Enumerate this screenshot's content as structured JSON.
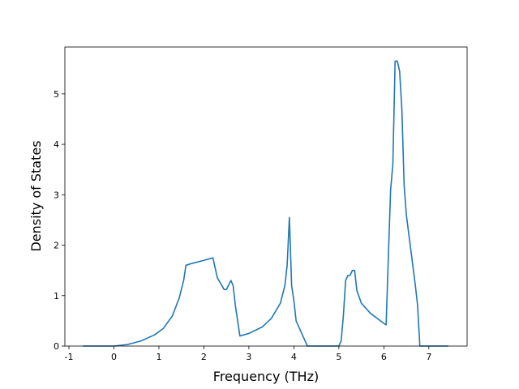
{
  "chart_data": {
    "type": "line",
    "xlabel": "Frequency (THz)",
    "ylabel": "Density of States",
    "color": "#1f77b4",
    "x": [
      -0.69,
      0,
      0.3,
      0.6,
      0.9,
      1.1,
      1.3,
      1.45,
      1.55,
      1.6,
      1.7,
      2.0,
      2.2,
      2.3,
      2.4,
      2.45,
      2.5,
      2.6,
      2.65,
      2.7,
      2.8,
      3.0,
      3.3,
      3.5,
      3.7,
      3.8,
      3.85,
      3.9,
      3.95,
      4.0,
      4.05,
      4.2,
      4.3,
      5.0,
      5.05,
      5.1,
      5.15,
      5.2,
      5.25,
      5.3,
      5.35,
      5.4,
      5.5,
      5.7,
      6.0,
      6.05,
      6.15,
      6.2,
      6.25,
      6.3,
      6.35,
      6.4,
      6.45,
      6.5,
      6.6,
      6.7,
      6.75,
      6.8,
      7.43
    ],
    "values": [
      0,
      0,
      0.03,
      0.1,
      0.22,
      0.35,
      0.6,
      0.95,
      1.3,
      1.6,
      1.63,
      1.7,
      1.75,
      1.35,
      1.2,
      1.12,
      1.12,
      1.3,
      1.2,
      0.8,
      0.2,
      0.25,
      0.38,
      0.55,
      0.85,
      1.2,
      1.6,
      2.55,
      1.2,
      0.9,
      0.5,
      0.2,
      0,
      0,
      0.1,
      0.6,
      1.3,
      1.4,
      1.4,
      1.5,
      1.5,
      1.1,
      0.85,
      0.65,
      0.45,
      0.42,
      3.1,
      3.6,
      5.65,
      5.65,
      5.45,
      4.7,
      3.2,
      2.6,
      1.9,
      1.2,
      0.8,
      0,
      0
    ],
    "xlim": [
      -1.09,
      7.85
    ],
    "ylim": [
      0,
      5.93
    ],
    "xticks": [
      -1,
      0,
      1,
      2,
      3,
      4,
      5,
      6,
      7
    ],
    "yticks": [
      0,
      1,
      2,
      3,
      4,
      5
    ]
  }
}
